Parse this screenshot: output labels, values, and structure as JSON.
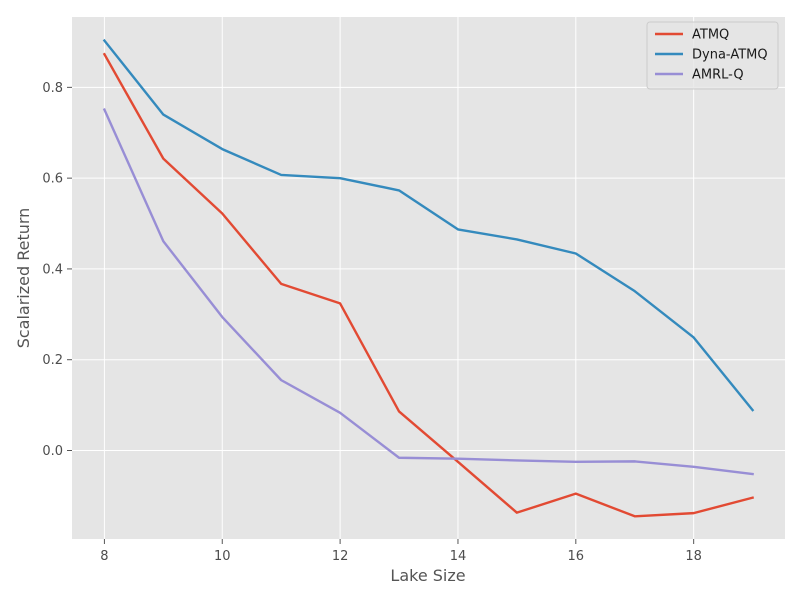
{
  "chart_data": {
    "type": "line",
    "xlabel": "Lake Size",
    "ylabel": "Scalarized Return",
    "xlim": [
      7.45,
      19.55
    ],
    "ylim": [
      -0.195,
      0.955
    ],
    "x": [
      8,
      9,
      10,
      11,
      12,
      13,
      14,
      15,
      16,
      17,
      18,
      19
    ],
    "xticks": [
      8,
      10,
      12,
      14,
      16,
      18
    ],
    "yticks": [
      0.0,
      0.2,
      0.4,
      0.6,
      0.8
    ],
    "xtick_labels": [
      "8",
      "10",
      "12",
      "14",
      "16",
      "18"
    ],
    "ytick_labels": [
      "0.0",
      "0.2",
      "0.4",
      "0.6",
      "0.8"
    ],
    "grid": true,
    "legend_position": "top-right",
    "series": [
      {
        "name": "ATMQ",
        "color": "#E24A33",
        "values": [
          0.873,
          0.643,
          0.522,
          0.367,
          0.324,
          0.086,
          -0.025,
          -0.137,
          -0.095,
          -0.145,
          -0.138,
          -0.104
        ]
      },
      {
        "name": "Dyna-ATMQ",
        "color": "#348ABD",
        "values": [
          0.903,
          0.74,
          0.664,
          0.607,
          0.6,
          0.573,
          0.487,
          0.465,
          0.434,
          0.351,
          0.249,
          0.089
        ]
      },
      {
        "name": "AMRL-Q",
        "color": "#988ED5",
        "values": [
          0.751,
          0.461,
          0.294,
          0.155,
          0.083,
          -0.016,
          -0.018,
          -0.022,
          -0.025,
          -0.024,
          -0.036,
          -0.052
        ]
      }
    ]
  }
}
